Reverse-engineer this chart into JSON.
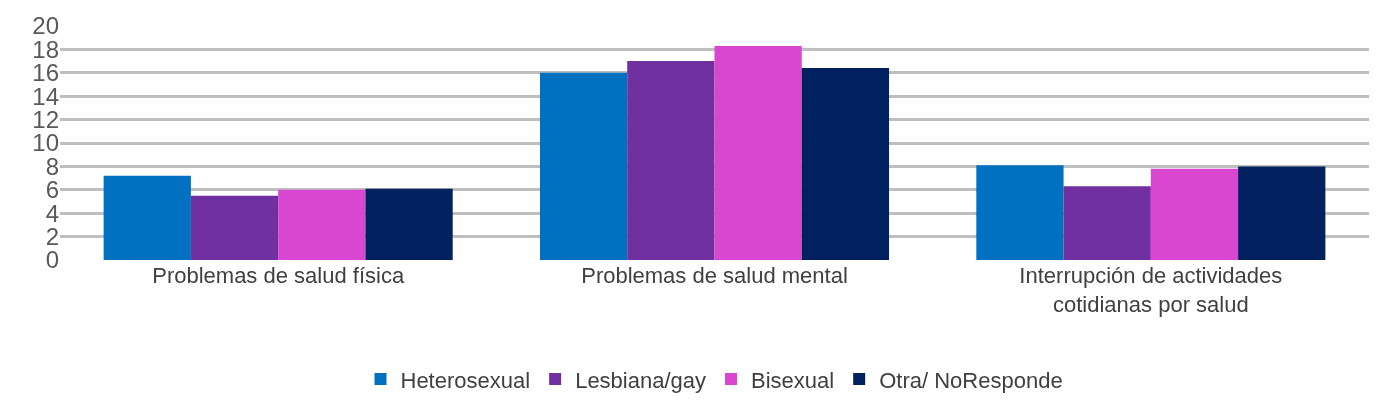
{
  "chart_data": {
    "type": "bar",
    "categories": [
      "Problemas de salud física",
      "Problemas de salud mental",
      "Interrupción de actividades\ncotidianas por salud"
    ],
    "series": [
      {
        "name": "Heterosexual",
        "color": "#0070c0",
        "values": [
          7.2,
          16.0,
          8.1
        ]
      },
      {
        "name": "Lesbiana/gay",
        "color": "#7030a0",
        "values": [
          5.5,
          17.0,
          6.3
        ]
      },
      {
        "name": "Bisexual",
        "color": "#d946cf",
        "values": [
          6.0,
          18.3,
          7.8
        ]
      },
      {
        "name": "Otra/ NoResponde",
        "color": "#002060",
        "values": [
          6.1,
          16.4,
          8.0
        ]
      }
    ],
    "ylim": [
      0,
      20
    ],
    "yticks": [
      0,
      2,
      4,
      6,
      8,
      10,
      12,
      14,
      16,
      18,
      20
    ],
    "grid": "y",
    "legend": "bottom"
  }
}
